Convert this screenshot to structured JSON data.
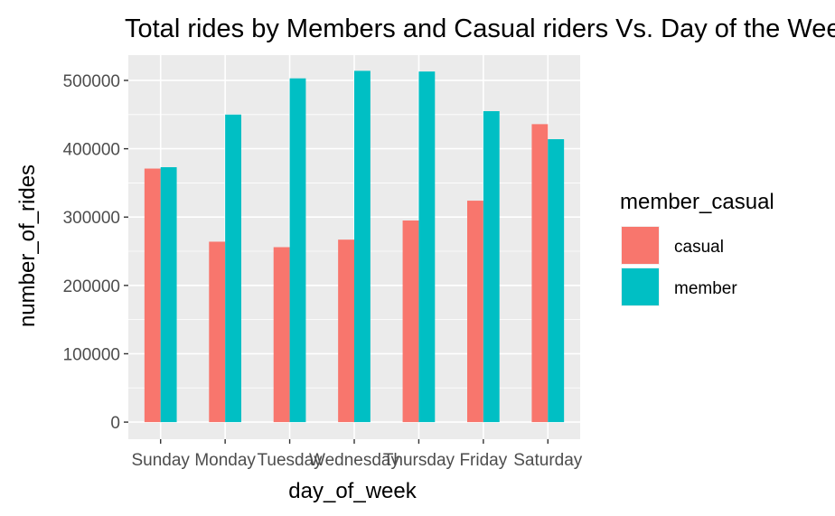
{
  "chart_data": {
    "type": "bar",
    "title": "Total rides by Members and Casual riders Vs. Day of the Week",
    "xlabel": "day_of_week",
    "ylabel": "number_of_rides",
    "categories": [
      "Sunday",
      "Monday",
      "Tuesday",
      "Wednesday",
      "Thursday",
      "Friday",
      "Saturday"
    ],
    "series": [
      {
        "name": "casual",
        "color": "#F8766D",
        "values": [
          371000,
          264000,
          256000,
          267000,
          295000,
          324000,
          436000
        ]
      },
      {
        "name": "member",
        "color": "#00BFC4",
        "values": [
          373000,
          450000,
          503000,
          514000,
          513000,
          455000,
          414000
        ]
      }
    ],
    "ylim": [
      -25000,
      537000
    ],
    "yticks": [
      0,
      100000,
      200000,
      300000,
      400000,
      500000
    ],
    "ytick_labels": [
      "0",
      "100000",
      "200000",
      "300000",
      "400000",
      "500000"
    ],
    "legend": {
      "title": "member_casual",
      "position": "right"
    },
    "grid": true,
    "panel_background": "#EBEBEB"
  }
}
